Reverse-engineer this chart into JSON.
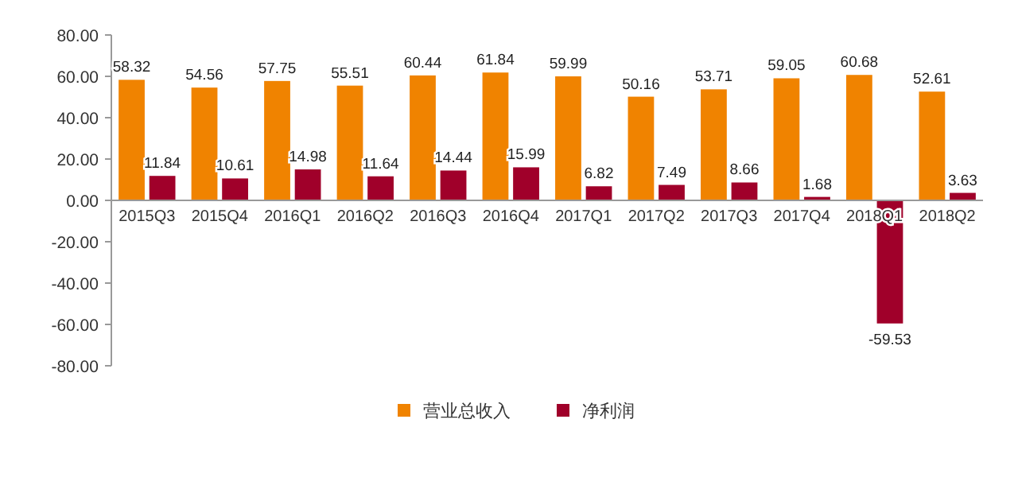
{
  "chart_data": {
    "type": "bar",
    "categories": [
      "2015Q3",
      "2015Q4",
      "2016Q1",
      "2016Q2",
      "2016Q3",
      "2016Q4",
      "2017Q1",
      "2017Q2",
      "2017Q3",
      "2017Q4",
      "2018Q1",
      "2018Q2"
    ],
    "series": [
      {
        "name": "营业总收入",
        "color": "#f08300",
        "values": [
          58.32,
          54.56,
          57.75,
          55.51,
          60.44,
          61.84,
          59.99,
          50.16,
          53.71,
          59.05,
          60.68,
          52.61
        ]
      },
      {
        "name": "净利润",
        "color": "#a0002a",
        "values": [
          11.84,
          10.61,
          14.98,
          11.64,
          14.44,
          15.99,
          6.82,
          7.49,
          8.66,
          1.68,
          -59.53,
          3.63
        ]
      }
    ],
    "ylim": [
      -80,
      80
    ],
    "yticks": [
      {
        "value": -80,
        "label": "-80.00"
      },
      {
        "value": -60,
        "label": "-60.00"
      },
      {
        "value": -40,
        "label": "-40.00"
      },
      {
        "value": -20,
        "label": "-20.00"
      },
      {
        "value": 0,
        "label": "0.00"
      },
      {
        "value": 20,
        "label": "20.00"
      },
      {
        "value": 40,
        "label": "40.00"
      },
      {
        "value": 60,
        "label": "60.00"
      },
      {
        "value": 80,
        "label": "80.00"
      }
    ],
    "data_labels": true,
    "legend": "bottom",
    "grid": false
  }
}
